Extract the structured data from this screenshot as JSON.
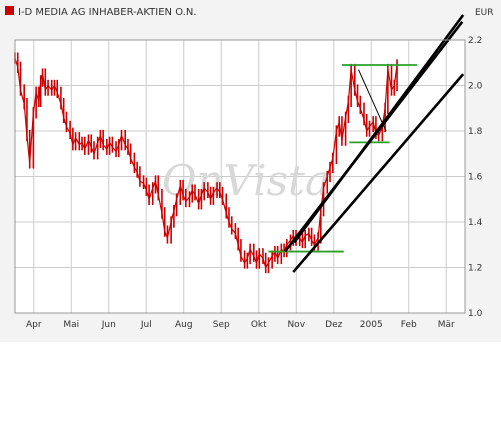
{
  "chart_data": {
    "type": "line",
    "title": "I-D MEDIA AG INHABER-AKTIEN O.N.",
    "ylabel": "EUR",
    "watermark": "OnVista",
    "ylim": [
      1.0,
      2.2
    ],
    "yticks": [
      "2.2",
      "2.0",
      "1.8",
      "1.6",
      "1.4",
      "1.2",
      "1.0"
    ],
    "yvalues": [
      2.2,
      2.0,
      1.8,
      1.6,
      1.4,
      1.2,
      1.0
    ],
    "xticks": [
      "Apr",
      "Mai",
      "Jun",
      "Jul",
      "Aug",
      "Sep",
      "Okt",
      "Nov",
      "Dez",
      "2005",
      "Feb",
      "Mär"
    ],
    "grid": true,
    "colors": {
      "price": "#cc0000",
      "legend": "#cc0000",
      "trend": "#000000",
      "support": "#2aa02a",
      "grid": "#cccccc",
      "plot_bg": "#ffffff",
      "frame": "#999999",
      "page_bg": "#f3f3f3"
    },
    "series": [
      {
        "name": "I-D MEDIA AG INHABER-AKTIEN O.N.",
        "points": [
          [
            0.0,
            2.12
          ],
          [
            0.3,
            2.08
          ],
          [
            0.6,
            1.98
          ],
          [
            1.0,
            1.92
          ],
          [
            1.3,
            1.78
          ],
          [
            1.6,
            1.66
          ],
          [
            2.0,
            1.88
          ],
          [
            2.3,
            1.97
          ],
          [
            2.6,
            1.93
          ],
          [
            2.8,
            2.02
          ],
          [
            3.0,
            2.05
          ],
          [
            3.3,
            1.98
          ],
          [
            3.6,
            2.0
          ],
          [
            4.0,
            1.98
          ],
          [
            4.3,
            2.0
          ],
          [
            4.6,
            1.97
          ],
          [
            5.0,
            1.92
          ],
          [
            5.3,
            1.86
          ],
          [
            5.6,
            1.82
          ],
          [
            6.0,
            1.79
          ],
          [
            6.3,
            1.74
          ],
          [
            6.6,
            1.77
          ],
          [
            7.0,
            1.74
          ],
          [
            7.3,
            1.75
          ],
          [
            7.6,
            1.72
          ],
          [
            8.0,
            1.76
          ],
          [
            8.3,
            1.73
          ],
          [
            8.6,
            1.7
          ],
          [
            9.0,
            1.75
          ],
          [
            9.3,
            1.78
          ],
          [
            9.6,
            1.74
          ],
          [
            10.0,
            1.72
          ],
          [
            10.3,
            1.75
          ],
          [
            10.6,
            1.73
          ],
          [
            11.0,
            1.71
          ],
          [
            11.3,
            1.74
          ],
          [
            11.6,
            1.78
          ],
          [
            12.0,
            1.74
          ],
          [
            12.3,
            1.72
          ],
          [
            12.6,
            1.68
          ],
          [
            13.0,
            1.64
          ],
          [
            13.3,
            1.62
          ],
          [
            13.6,
            1.58
          ],
          [
            14.0,
            1.57
          ],
          [
            14.3,
            1.54
          ],
          [
            14.6,
            1.5
          ],
          [
            15.0,
            1.55
          ],
          [
            15.3,
            1.58
          ],
          [
            15.6,
            1.52
          ],
          [
            16.0,
            1.44
          ],
          [
            16.3,
            1.36
          ],
          [
            16.6,
            1.33
          ],
          [
            17.0,
            1.4
          ],
          [
            17.3,
            1.45
          ],
          [
            17.6,
            1.5
          ],
          [
            18.0,
            1.56
          ],
          [
            18.3,
            1.52
          ],
          [
            18.6,
            1.49
          ],
          [
            19.0,
            1.51
          ],
          [
            19.3,
            1.54
          ],
          [
            19.6,
            1.52
          ],
          [
            20.0,
            1.48
          ],
          [
            20.3,
            1.52
          ],
          [
            20.6,
            1.55
          ],
          [
            21.0,
            1.53
          ],
          [
            21.3,
            1.5
          ],
          [
            21.6,
            1.53
          ],
          [
            22.0,
            1.55
          ],
          [
            22.3,
            1.53
          ],
          [
            22.6,
            1.5
          ],
          [
            23.0,
            1.44
          ],
          [
            23.3,
            1.4
          ],
          [
            23.6,
            1.37
          ],
          [
            24.0,
            1.35
          ],
          [
            24.3,
            1.3
          ],
          [
            24.6,
            1.25
          ],
          [
            25.0,
            1.22
          ],
          [
            25.3,
            1.24
          ],
          [
            25.6,
            1.28
          ],
          [
            26.0,
            1.25
          ],
          [
            26.3,
            1.22
          ],
          [
            26.6,
            1.26
          ],
          [
            27.0,
            1.24
          ],
          [
            27.3,
            1.2
          ],
          [
            27.6,
            1.22
          ],
          [
            28.0,
            1.25
          ],
          [
            28.3,
            1.27
          ],
          [
            28.6,
            1.24
          ],
          [
            29.0,
            1.28
          ],
          [
            29.3,
            1.27
          ],
          [
            29.6,
            1.3
          ],
          [
            30.0,
            1.32
          ],
          [
            30.3,
            1.34
          ],
          [
            30.6,
            1.32
          ],
          [
            31.0,
            1.33
          ],
          [
            31.3,
            1.31
          ],
          [
            31.6,
            1.34
          ],
          [
            32.0,
            1.35
          ],
          [
            32.3,
            1.32
          ],
          [
            32.6,
            1.3
          ],
          [
            33.0,
            1.33
          ],
          [
            33.3,
            1.45
          ],
          [
            33.6,
            1.55
          ],
          [
            34.0,
            1.6
          ],
          [
            34.3,
            1.64
          ],
          [
            34.6,
            1.68
          ],
          [
            35.0,
            1.8
          ],
          [
            35.3,
            1.84
          ],
          [
            35.6,
            1.76
          ],
          [
            36.0,
            1.86
          ],
          [
            36.3,
            1.93
          ],
          [
            36.6,
            2.07
          ],
          [
            37.0,
            1.98
          ],
          [
            37.3,
            1.93
          ],
          [
            37.6,
            1.9
          ],
          [
            38.0,
            1.85
          ],
          [
            38.3,
            1.8
          ],
          [
            38.6,
            1.82
          ],
          [
            39.0,
            1.84
          ],
          [
            39.3,
            1.79
          ],
          [
            39.6,
            1.78
          ],
          [
            40.0,
            1.82
          ],
          [
            40.3,
            1.9
          ],
          [
            40.6,
            2.07
          ],
          [
            41.0,
            1.98
          ],
          [
            41.3,
            2.0
          ],
          [
            41.6,
            2.09
          ]
        ]
      }
    ],
    "annotations": {
      "trend_lines": [
        {
          "from": [
            30.4,
            1.31
          ],
          "to": [
            48.8,
            2.31
          ]
        },
        {
          "from": [
            29.4,
            1.27
          ],
          "to": [
            48.7,
            2.28
          ]
        },
        {
          "from": [
            30.3,
            1.18
          ],
          "to": [
            48.8,
            2.05
          ]
        },
        {
          "from": [
            37.4,
            2.07
          ],
          "to": [
            40.4,
            1.8
          ]
        }
      ],
      "support_lines": [
        {
          "from": [
            35.6,
            2.09
          ],
          "to": [
            43.8,
            2.09
          ]
        },
        {
          "from": [
            36.4,
            1.75
          ],
          "to": [
            40.8,
            1.75
          ]
        },
        {
          "from": [
            27.6,
            1.27
          ],
          "to": [
            35.8,
            1.27
          ]
        }
      ]
    }
  }
}
